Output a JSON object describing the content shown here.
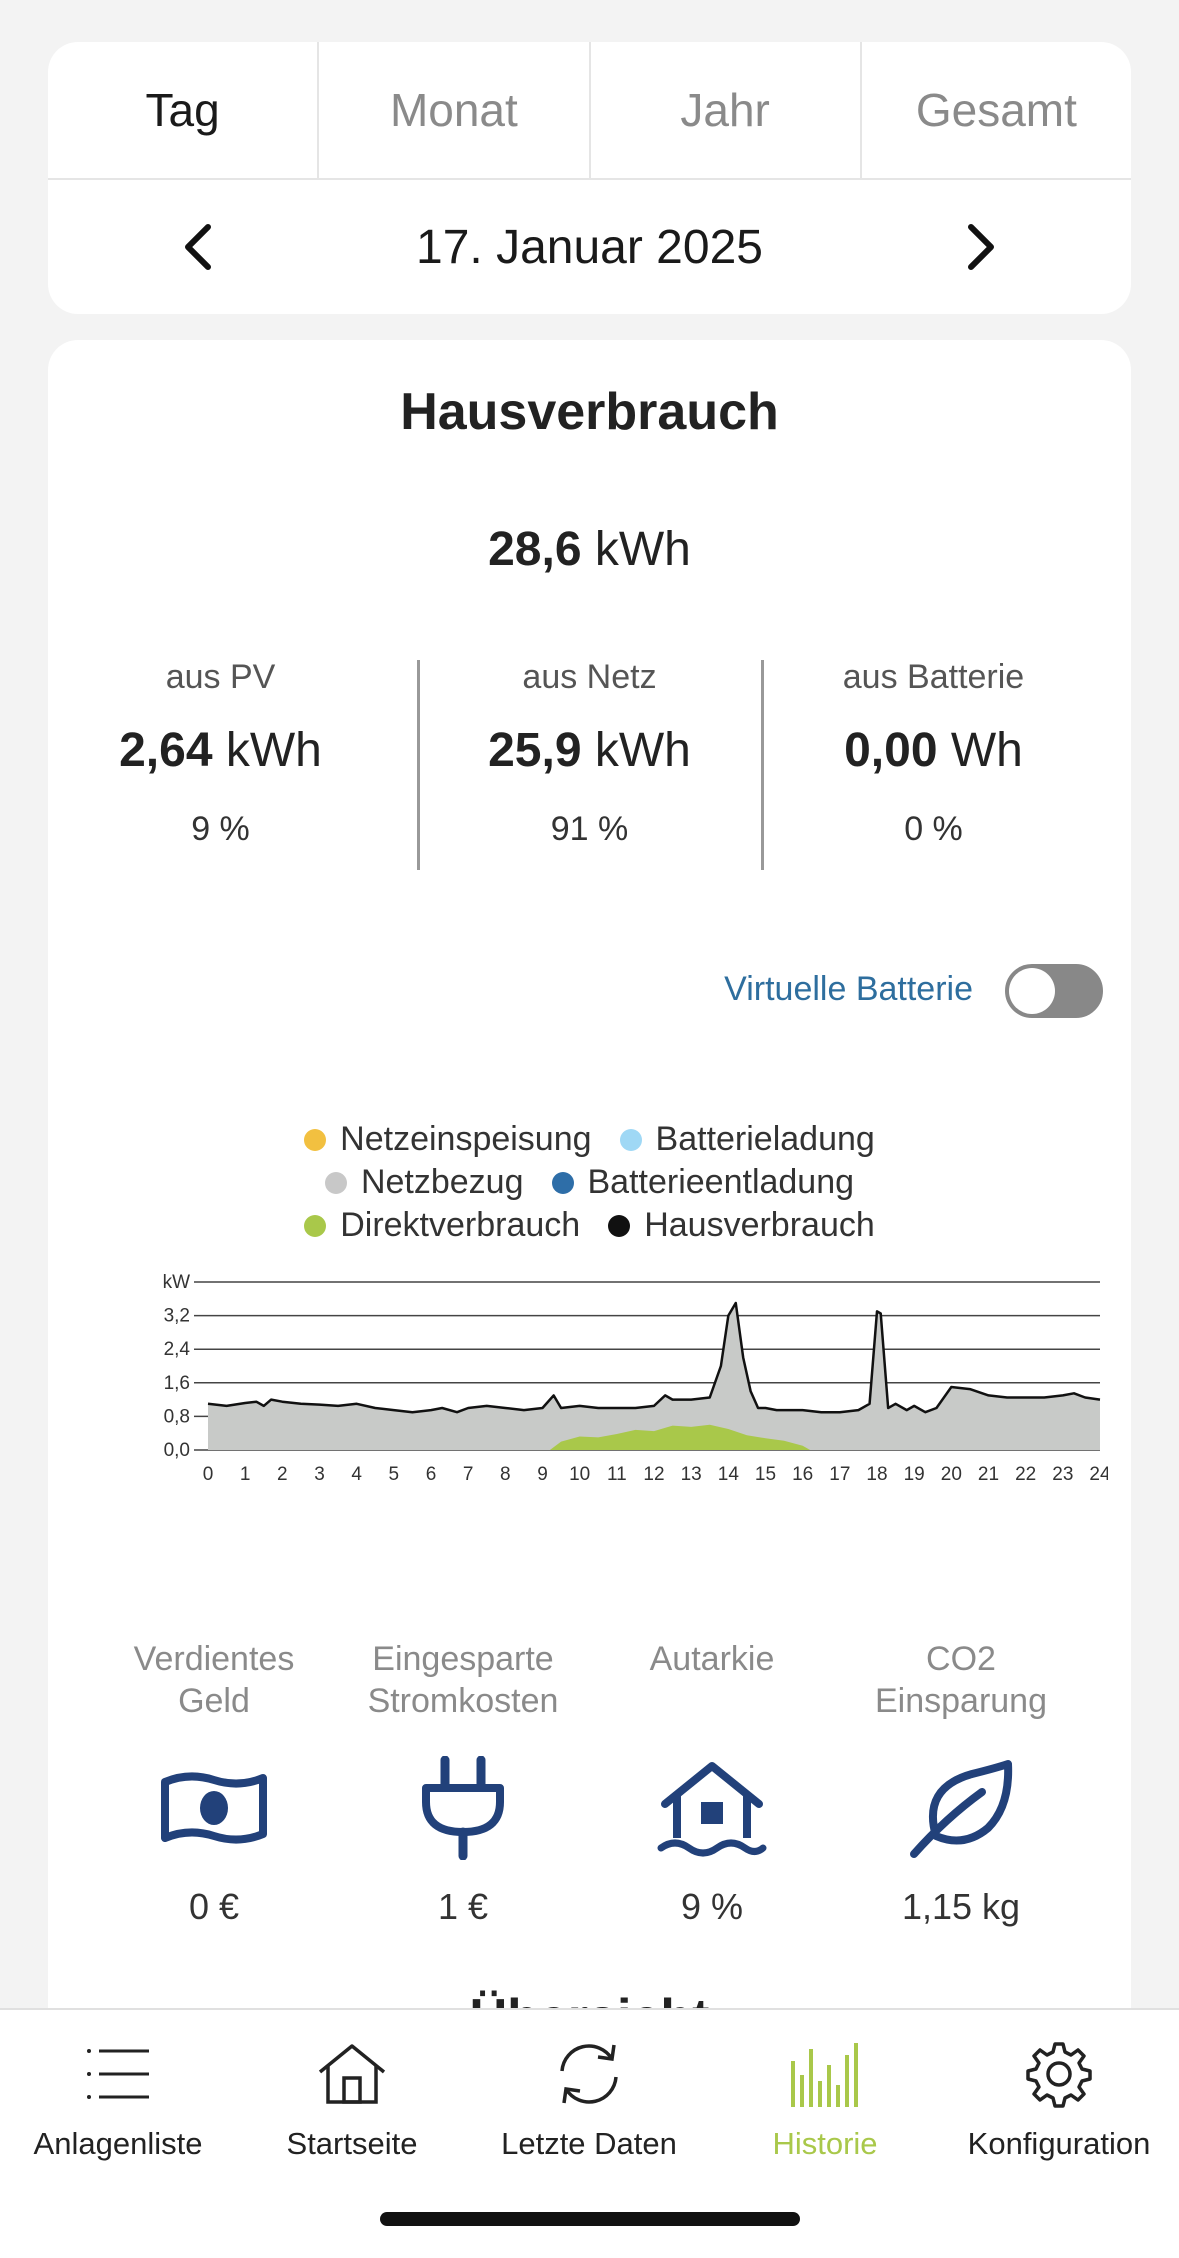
{
  "tabs": [
    {
      "label": "Tag",
      "active": true
    },
    {
      "label": "Monat",
      "active": false
    },
    {
      "label": "Jahr",
      "active": false
    },
    {
      "label": "Gesamt",
      "active": false
    }
  ],
  "date": "17. Januar 2025",
  "card": {
    "title": "Hausverbrauch",
    "total_value": "28,6",
    "total_unit": "kWh",
    "sources": [
      {
        "label": "aus PV",
        "value": "2,64",
        "unit": "kWh",
        "percent": "9 %"
      },
      {
        "label": "aus Netz",
        "value": "25,9",
        "unit": "kWh",
        "percent": "91 %"
      },
      {
        "label": "aus Batterie",
        "value": "0,00",
        "unit": "Wh",
        "percent": "0 %"
      }
    ],
    "virtual_battery_label": "Virtuelle Batterie",
    "virtual_battery_on": false
  },
  "legend": [
    {
      "label": "Netzeinspeisung",
      "color": "#f2c040"
    },
    {
      "label": "Batterieladung",
      "color": "#9fd8f5"
    },
    {
      "label": "Netzbezug",
      "color": "#c8c8c8"
    },
    {
      "label": "Batterieentladung",
      "color": "#2e6ea8"
    },
    {
      "label": "Direktverbrauch",
      "color": "#a9c84a"
    },
    {
      "label": "Hausverbrauch",
      "color": "#111111"
    }
  ],
  "chart_data": {
    "type": "area",
    "ylabel": "kW",
    "ylim": [
      0,
      4.0
    ],
    "yticks": [
      "0,0",
      "0,8",
      "1,6",
      "2,4",
      "3,2"
    ],
    "xticks": [
      "0",
      "1",
      "2",
      "3",
      "4",
      "5",
      "6",
      "7",
      "8",
      "9",
      "10",
      "11",
      "12",
      "13",
      "14",
      "15",
      "16",
      "17",
      "18",
      "19",
      "20",
      "21",
      "22",
      "23",
      "24"
    ],
    "xlim": [
      0,
      24
    ],
    "grid": true,
    "series": [
      {
        "name": "Hausverbrauch",
        "color": "#111111",
        "x": [
          0,
          0.5,
          1,
          1.3,
          1.5,
          1.7,
          2,
          2.5,
          3,
          3.5,
          4,
          4.5,
          5,
          5.5,
          6,
          6.3,
          6.7,
          7,
          7.5,
          8,
          8.5,
          9,
          9.3,
          9.5,
          10,
          10.5,
          11,
          11.5,
          12,
          12.3,
          12.5,
          13,
          13.5,
          13.8,
          14,
          14.2,
          14.4,
          14.6,
          14.8,
          15,
          15.3,
          15.6,
          16,
          16.5,
          17,
          17.5,
          17.8,
          18,
          18.1,
          18.3,
          18.5,
          18.8,
          19,
          19.3,
          19.6,
          20,
          20.5,
          21,
          21.5,
          22,
          22.5,
          23,
          23.3,
          23.6,
          24
        ],
        "values": [
          1.1,
          1.05,
          1.12,
          1.15,
          1.05,
          1.2,
          1.15,
          1.1,
          1.08,
          1.05,
          1.1,
          1.0,
          0.95,
          0.9,
          0.95,
          1.0,
          0.9,
          1.0,
          1.05,
          1.0,
          0.95,
          1.0,
          1.3,
          1.0,
          1.05,
          1.0,
          1.0,
          1.0,
          1.05,
          1.3,
          1.2,
          1.2,
          1.25,
          2.0,
          3.2,
          3.5,
          2.2,
          1.4,
          1.0,
          1.0,
          0.95,
          0.95,
          0.95,
          0.9,
          0.9,
          0.95,
          1.1,
          3.3,
          3.25,
          1.0,
          1.1,
          0.95,
          1.05,
          0.9,
          1.0,
          1.5,
          1.45,
          1.3,
          1.25,
          1.25,
          1.25,
          1.3,
          1.35,
          1.25,
          1.2
        ]
      },
      {
        "name": "Direktverbrauch",
        "color": "#a9c84a",
        "x": [
          9.2,
          9.5,
          10,
          10.5,
          11,
          11.5,
          12,
          12.5,
          13,
          13.5,
          14,
          14.5,
          15,
          15.5,
          16,
          16.2
        ],
        "values": [
          0.0,
          0.2,
          0.32,
          0.3,
          0.38,
          0.48,
          0.45,
          0.58,
          0.55,
          0.6,
          0.5,
          0.35,
          0.28,
          0.22,
          0.1,
          0.0
        ]
      }
    ]
  },
  "stats": [
    {
      "label1": "Verdientes",
      "label2": "Geld",
      "icon": "banknote-icon",
      "value": "0 €"
    },
    {
      "label1": "Eingesparte",
      "label2": "Stromkosten",
      "icon": "plug-icon",
      "value": "1 €"
    },
    {
      "label1": "Autarkie",
      "label2": "",
      "icon": "house-icon",
      "value": "9 %"
    },
    {
      "label1": "CO2",
      "label2": "Einsparung",
      "icon": "leaf-icon",
      "value": "1,15 kg"
    }
  ],
  "peek_title": "Übersicht",
  "nav": [
    {
      "label": "Anlagenliste",
      "icon": "list-icon",
      "active": false
    },
    {
      "label": "Startseite",
      "icon": "home-icon",
      "active": false
    },
    {
      "label": "Letzte Daten",
      "icon": "refresh-icon",
      "active": false
    },
    {
      "label": "Historie",
      "icon": "bar-chart-icon",
      "active": true
    },
    {
      "label": "Konfiguration",
      "icon": "gear-icon",
      "active": false
    }
  ],
  "colors": {
    "accent_green": "#a9c84a",
    "icon_blue": "#22417a",
    "link_blue": "#2e6e9e"
  }
}
